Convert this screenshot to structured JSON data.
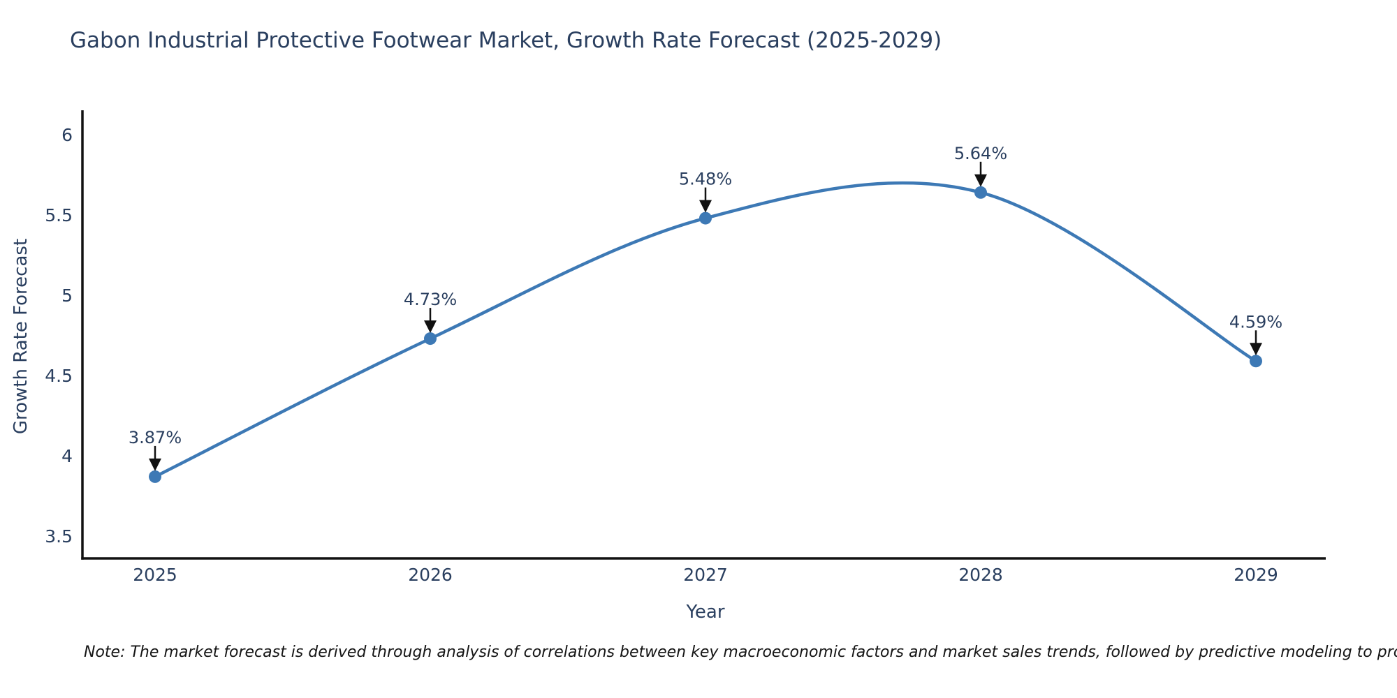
{
  "chart_data": {
    "type": "line",
    "title": "Gabon Industrial Protective Footwear Market, Growth Rate Forecast (2025-2029)",
    "xlabel": "Year",
    "ylabel": "Growth Rate Forecast",
    "categories": [
      2025,
      2026,
      2027,
      2028,
      2029
    ],
    "values": [
      3.87,
      4.73,
      5.48,
      5.64,
      4.59
    ],
    "point_labels": [
      "3.87%",
      "4.73%",
      "5.48%",
      "5.64%",
      "4.59%"
    ],
    "y_ticks": [
      3.5,
      4,
      4.5,
      5,
      5.5,
      6
    ],
    "ylim": [
      3.36,
      6.14
    ],
    "grid": false,
    "legend": "none",
    "line_shape": "spline",
    "line_color": "#3d79b5",
    "marker_color": "#3d79b5",
    "axis_color": "#111111",
    "text_color": "#2a3f5f",
    "annotation_arrow_color": "#111111",
    "note": "Note: The market forecast is derived through analysis of correlations between key macroeconomic factors and market sales trends, followed by predictive modeling to project future sales"
  }
}
